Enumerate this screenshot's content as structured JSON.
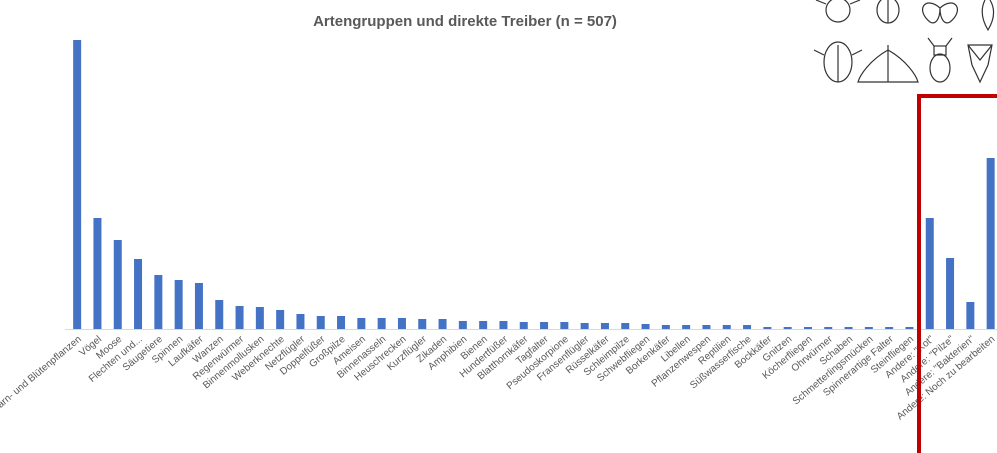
{
  "chart_data": {
    "type": "bar",
    "title": "Artengruppen und direkte Treiber (n = 507)",
    "categories": [
      "Farn- und Blütenpflanzen",
      "Vögel",
      "Moose",
      "Flechten und...",
      "Säugetiere",
      "Spinnen",
      "Laufkäfer",
      "Wanzen",
      "Regenwürmer",
      "Binnenmollusken",
      "Weberknechte",
      "Netzflügler",
      "Doppelfüßer",
      "Großpilze",
      "Ameisen",
      "Binnenasseln",
      "Heuschrecken",
      "Kurzflügler",
      "Zikaden",
      "Amphibien",
      "Bienen",
      "Hundertfüßer",
      "Blatthornkäfer",
      "Tagfalter",
      "Pseudoskorpione",
      "Fransenflügler",
      "Rüsselkäfer",
      "Schleimpilze",
      "Schwebfliegen",
      "Borkenkäfer",
      "Libellen",
      "Pflanzenwespen",
      "Reptilien",
      "Süßwasserfische",
      "Bockkäfer",
      "Gnitzen",
      "Köcherfliegen",
      "Ohrwürmer",
      "Schaben",
      "Schmetterlingsmücken",
      "Spinnerartige Falter",
      "Steinfliegen",
      "Andere: \"Kot\"",
      "Andere: \"Pilze\"",
      "Andere: \"Bakterien\"",
      "Andere: Noch zu bearbeiten"
    ],
    "values": [
      289,
      111,
      89,
      70,
      54,
      49,
      46,
      29,
      23,
      22,
      19,
      15,
      13,
      13,
      11,
      11,
      11,
      10,
      10,
      8,
      8,
      8,
      7,
      7,
      7,
      6,
      6,
      6,
      5,
      4,
      4,
      4,
      4,
      4,
      2,
      2,
      2,
      2,
      2,
      2,
      2,
      2,
      111,
      71,
      27,
      171
    ],
    "color": "#4472c4",
    "ylim": [
      0,
      300
    ]
  }
}
